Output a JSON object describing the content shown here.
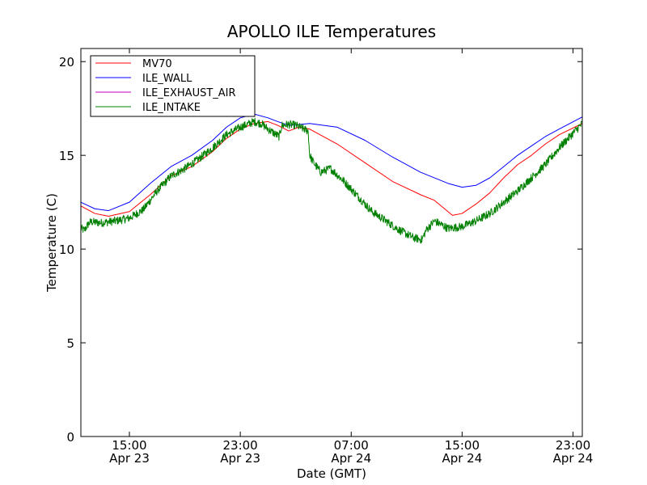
{
  "chart_data": {
    "type": "line",
    "title": "APOLLO ILE Temperatures",
    "xlabel": "Date (GMT)",
    "ylabel": "Temperature (C)",
    "ylim": [
      0,
      20.7
    ],
    "xlim_hours": [
      11.5,
      47.67
    ],
    "x_unit": "hours since Apr 23 00:00 GMT",
    "grid": false,
    "legend_position": "top-left",
    "x_ticks": [
      {
        "hours": 15,
        "time": "15:00",
        "date": "Apr 23"
      },
      {
        "hours": 23,
        "time": "23:00",
        "date": "Apr 23"
      },
      {
        "hours": 31,
        "time": "07:00",
        "date": "Apr 24"
      },
      {
        "hours": 39,
        "time": "15:00",
        "date": "Apr 24"
      },
      {
        "hours": 47,
        "time": "23:00",
        "date": "Apr 24"
      }
    ],
    "y_ticks": [
      0,
      5,
      10,
      15,
      20
    ],
    "series": [
      {
        "name": "MV70",
        "color": "#ff0000",
        "noise": 0,
        "x": [
          11.5,
          12.5,
          13.5,
          15,
          16.5,
          18,
          19.5,
          21,
          22,
          23,
          24,
          25,
          25.7,
          26.5,
          27.2,
          28,
          30,
          32,
          34,
          36,
          37,
          38.3,
          39,
          40,
          41,
          42,
          43,
          44,
          45,
          46,
          47.67
        ],
        "y": [
          12.3,
          11.9,
          11.75,
          12.0,
          12.9,
          13.9,
          14.4,
          15.2,
          15.9,
          16.4,
          16.7,
          16.8,
          16.6,
          16.3,
          16.5,
          16.4,
          15.6,
          14.6,
          13.6,
          12.9,
          12.6,
          11.8,
          11.9,
          12.4,
          13.0,
          13.8,
          14.5,
          15.0,
          15.6,
          16.1,
          16.7
        ]
      },
      {
        "name": "ILE_WALL",
        "color": "#0000ff",
        "noise": 0,
        "x": [
          11.5,
          12.5,
          13.5,
          15,
          16.5,
          18,
          19.5,
          21,
          22,
          23,
          24,
          25,
          25.7,
          26.5,
          28,
          30,
          32,
          34,
          36,
          38,
          39,
          40,
          41,
          42,
          43,
          44,
          45,
          46,
          47.67
        ],
        "y": [
          12.5,
          12.15,
          12.05,
          12.5,
          13.5,
          14.4,
          15.0,
          15.8,
          16.5,
          17.0,
          17.2,
          17.0,
          16.8,
          16.6,
          16.7,
          16.5,
          15.8,
          14.9,
          14.1,
          13.5,
          13.3,
          13.4,
          13.8,
          14.4,
          15.0,
          15.5,
          16.0,
          16.4,
          17.05
        ]
      },
      {
        "name": "ILE_EXHAUST_AIR",
        "color": "#bf00bf",
        "noise": 0,
        "x": [],
        "y": []
      },
      {
        "name": "ILE_INTAKE",
        "color": "#008000",
        "noise": 0.22,
        "x": [
          11.5,
          11.75,
          12.0,
          12.2,
          13.0,
          14.0,
          15.0,
          16.0,
          17.0,
          18.0,
          19.0,
          20.0,
          21.0,
          22.0,
          23.0,
          24.0,
          24.5,
          25.0,
          25.4,
          25.8,
          26.0,
          26.5,
          27.0,
          27.9,
          28.0,
          28.3,
          28.8,
          29.5,
          30.5,
          31.5,
          32.5,
          33.5,
          34.5,
          35.5,
          36.1,
          36.4,
          37.0,
          38.0,
          39.0,
          40.0,
          41.0,
          42.0,
          43.0,
          44.0,
          45.0,
          46.0,
          47.67
        ],
        "y": [
          11.1,
          11.0,
          11.3,
          11.45,
          11.4,
          11.5,
          11.65,
          12.1,
          13.1,
          13.9,
          14.3,
          14.8,
          15.4,
          16.1,
          16.5,
          16.8,
          16.7,
          16.4,
          16.2,
          16.0,
          16.6,
          16.65,
          16.6,
          16.3,
          15.0,
          14.6,
          14.1,
          14.3,
          13.6,
          12.8,
          12.0,
          11.5,
          11.0,
          10.6,
          10.5,
          11.0,
          11.5,
          11.1,
          11.2,
          11.5,
          11.9,
          12.5,
          13.1,
          13.8,
          14.5,
          15.4,
          16.7
        ]
      }
    ]
  }
}
